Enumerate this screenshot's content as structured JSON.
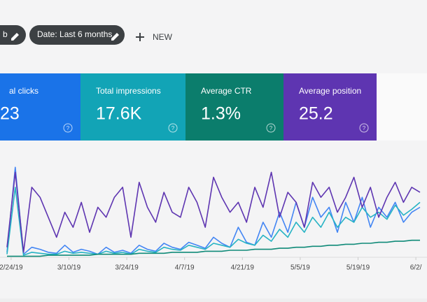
{
  "filters": [
    {
      "label": "b"
    },
    {
      "label": "Date: Last 6 months"
    }
  ],
  "new_button": "NEW",
  "cards": [
    {
      "label": "al clicks",
      "value": "23",
      "color": "#1a73e8"
    },
    {
      "label": "Total impressions",
      "value": "17.6K",
      "color": "#12a4b6"
    },
    {
      "label": "Average CTR",
      "value": "1.3%",
      "color": "#0b7d6c"
    },
    {
      "label": "Average position",
      "value": "25.2",
      "color": "#5e35b1"
    }
  ],
  "help_icon": "?",
  "chart_data": {
    "type": "line",
    "x": [
      0,
      2,
      4,
      6,
      8,
      10,
      12,
      14,
      16,
      18,
      20,
      22,
      24,
      26,
      28,
      30,
      32,
      34,
      36,
      38,
      40,
      42,
      44,
      46,
      48,
      50,
      52,
      54,
      56,
      58,
      60,
      62,
      64,
      66,
      68,
      70,
      72,
      74,
      76,
      78,
      80,
      82,
      84,
      86,
      88,
      90,
      92,
      94,
      96,
      98,
      100
    ],
    "xlim": [
      0,
      100
    ],
    "xticks": [
      {
        "value": 1,
        "label": "2/24/19"
      },
      {
        "value": 15,
        "label": "3/10/19"
      },
      {
        "value": 29,
        "label": "3/24/19"
      },
      {
        "value": 43,
        "label": "4/7/19"
      },
      {
        "value": 57,
        "label": "4/21/19"
      },
      {
        "value": 71,
        "label": "5/5/19"
      },
      {
        "value": 85,
        "label": "5/19/19"
      },
      {
        "value": 99,
        "label": "6/2/"
      }
    ],
    "ylim": [
      0,
      100
    ],
    "series": [
      {
        "name": "al clicks",
        "color": "#4285f4",
        "values": [
          5,
          90,
          3,
          10,
          8,
          5,
          4,
          12,
          5,
          8,
          6,
          3,
          10,
          5,
          7,
          4,
          12,
          8,
          6,
          14,
          10,
          8,
          15,
          12,
          9,
          20,
          14,
          10,
          30,
          15,
          12,
          35,
          20,
          45,
          25,
          55,
          30,
          60,
          40,
          50,
          25,
          55,
          35,
          60,
          30,
          50,
          40,
          55,
          35,
          45,
          50
        ]
      },
      {
        "name": "Total impressions",
        "color": "#26b3c4",
        "values": [
          3,
          70,
          2,
          5,
          4,
          3,
          3,
          6,
          4,
          5,
          4,
          3,
          6,
          4,
          5,
          3,
          8,
          6,
          5,
          10,
          8,
          7,
          12,
          10,
          8,
          14,
          12,
          10,
          18,
          14,
          12,
          22,
          16,
          28,
          20,
          35,
          25,
          40,
          30,
          45,
          30,
          40,
          35,
          50,
          40,
          45,
          38,
          52,
          42,
          48,
          55
        ]
      },
      {
        "name": "Average CTR",
        "color": "#0f8a78",
        "values": [
          1,
          1,
          1,
          1,
          1,
          2,
          2,
          2,
          2,
          2,
          2,
          3,
          3,
          3,
          3,
          3,
          4,
          4,
          4,
          4,
          5,
          5,
          5,
          5,
          6,
          6,
          6,
          7,
          7,
          7,
          8,
          8,
          8,
          9,
          9,
          10,
          10,
          11,
          11,
          12,
          12,
          13,
          13,
          14,
          14,
          15,
          15,
          16,
          16,
          17,
          17
        ]
      },
      {
        "name": "Average position",
        "color": "#5e35b1",
        "values": [
          10,
          85,
          5,
          70,
          60,
          40,
          20,
          45,
          30,
          55,
          25,
          50,
          40,
          60,
          70,
          20,
          75,
          50,
          35,
          65,
          45,
          40,
          70,
          55,
          30,
          80,
          60,
          45,
          55,
          35,
          70,
          50,
          85,
          40,
          65,
          55,
          30,
          75,
          60,
          70,
          45,
          60,
          80,
          50,
          70,
          40,
          60,
          75,
          55,
          70,
          65
        ]
      }
    ]
  }
}
